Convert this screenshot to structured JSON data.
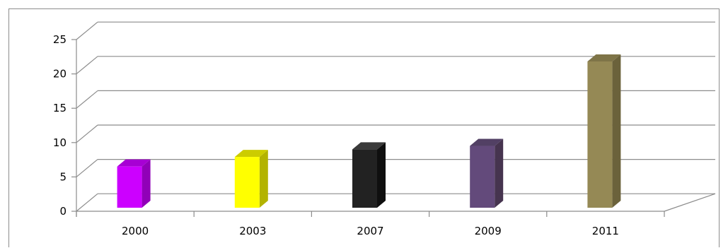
{
  "chart_data": {
    "type": "bar",
    "title": "",
    "xlabel": "",
    "ylabel": "",
    "categories": [
      "2000",
      "2003",
      "2007",
      "2009",
      "2011"
    ],
    "values": [
      6,
      7.4,
      8.5,
      9,
      21.3
    ],
    "ylim": [
      0,
      25
    ],
    "yticks": [
      "0",
      "5",
      "10",
      "15",
      "20",
      "25"
    ],
    "grid": true,
    "legend": "none",
    "three_d": true,
    "bar_colors": [
      "#cc00ff",
      "#ffff00",
      "#222222",
      "#634a7b",
      "#958955"
    ],
    "bar_side_colors": [
      "#9100b8",
      "#b3b300",
      "#0f0f0f",
      "#46344f",
      "#6b623b"
    ],
    "bar_top_colors": [
      "#a700d4",
      "#cccc00",
      "#3a3a3a",
      "#524064",
      "#7e7447"
    ]
  }
}
